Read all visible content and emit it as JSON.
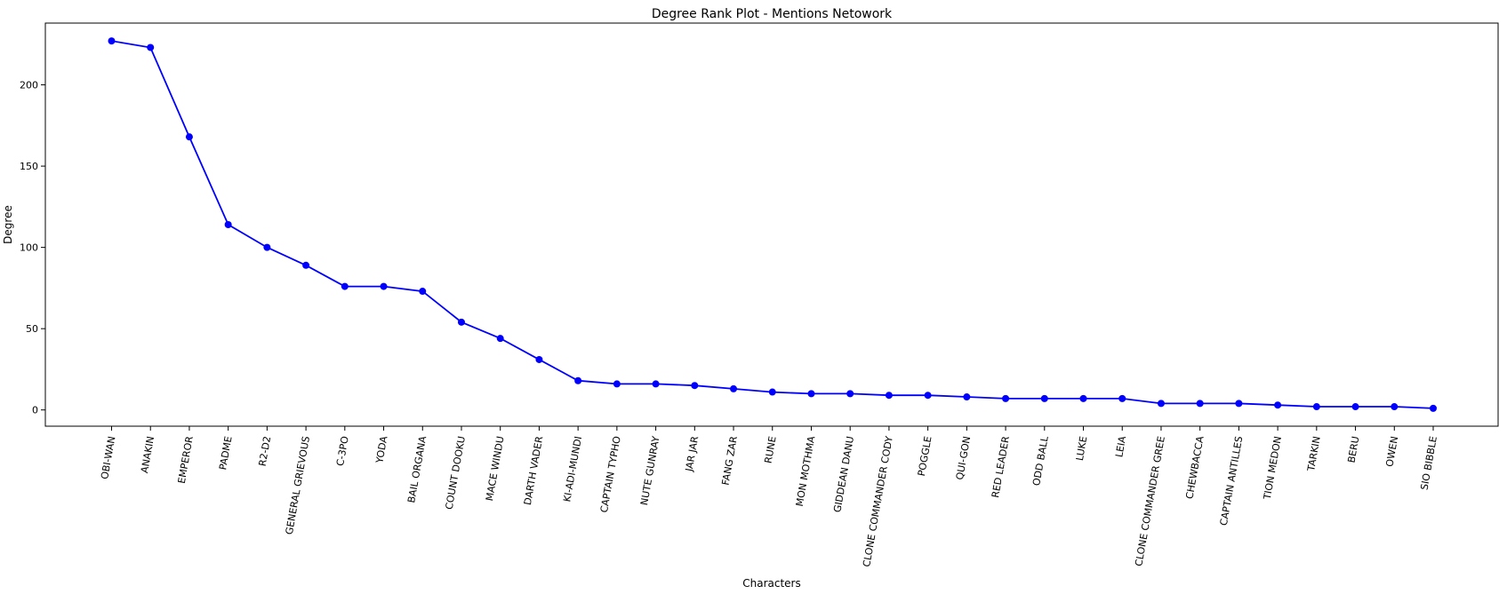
{
  "chart_data": {
    "type": "line",
    "title": "Degree Rank Plot - Mentions Netowork",
    "xlabel": "Characters",
    "ylabel": "Degree",
    "categories": [
      "OBI-WAN",
      "ANAKIN",
      "EMPEROR",
      "PADME",
      "R2-D2",
      "GENERAL GRIEVOUS",
      "C-3PO",
      "YODA",
      "BAIL ORGANA",
      "COUNT DOOKU",
      "MACE WINDU",
      "DARTH VADER",
      "KI-ADI-MUNDI",
      "CAPTAIN TYPHO",
      "NUTE GUNRAY",
      "JAR JAR",
      "FANG ZAR",
      "RUNE",
      "MON MOTHMA",
      "GIDDEAN DANU",
      "CLONE COMMANDER CODY",
      "POGGLE",
      "QUI-GON",
      "RED LEADER",
      "ODD BALL",
      "LUKE",
      "LEIA",
      "CLONE COMMANDER GREE",
      "CHEWBACCA",
      "CAPTAIN ANTILLES",
      "TION MEDON",
      "TARKIN",
      "BERU",
      "OWEN",
      "SIO BIBBLE"
    ],
    "values": [
      227,
      223,
      168,
      114,
      100,
      89,
      76,
      76,
      73,
      54,
      44,
      31,
      18,
      16,
      16,
      15,
      13,
      11,
      10,
      10,
      9,
      9,
      8,
      7,
      7,
      7,
      7,
      4,
      4,
      4,
      3,
      2,
      2,
      2,
      1
    ],
    "yticks": [
      0,
      50,
      100,
      150,
      200
    ],
    "ylim": [
      -10,
      238
    ],
    "grid": false,
    "line_color": "#0000ff",
    "marker": "circle"
  }
}
